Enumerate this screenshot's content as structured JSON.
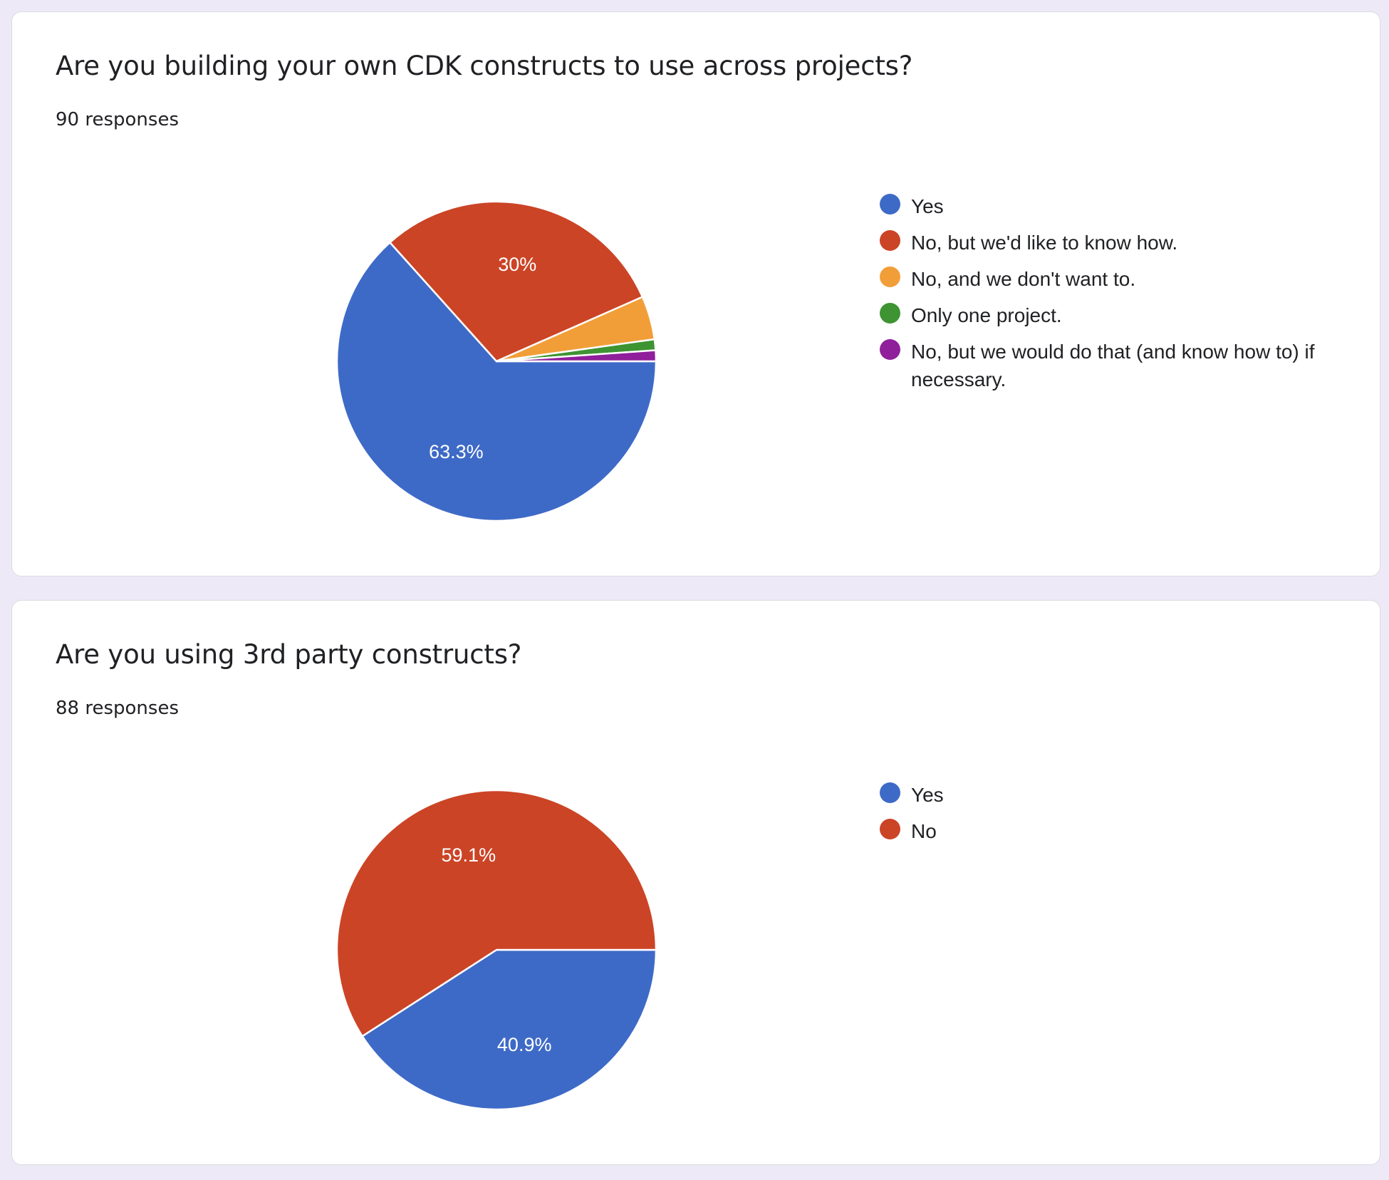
{
  "page_background": "#ede9f7",
  "questions": [
    {
      "title": "Are you building your own CDK constructs to use across projects?",
      "responses": "90 responses"
    },
    {
      "title": "Are you using 3rd party constructs?",
      "responses": "88 responses"
    }
  ],
  "chart_data": [
    {
      "type": "pie",
      "categories": [
        "Yes",
        "No, but we'd like to know how.",
        "No, and we don't want to.",
        "Only one project.",
        "No, but we would do that (and know how to) if necessary."
      ],
      "values": [
        63.3,
        30,
        4.4,
        1.1,
        1.1
      ],
      "value_labels": [
        "63.3%",
        "30%",
        "",
        "",
        ""
      ],
      "colors": [
        "#3e6ac7",
        "#cb4426",
        "#f29e38",
        "#3e9432",
        "#8f1f9b"
      ],
      "start_angle_deg": 0,
      "direction": "clockwise",
      "legend": "right"
    },
    {
      "type": "pie",
      "categories": [
        "Yes",
        "No"
      ],
      "values": [
        40.9,
        59.1
      ],
      "value_labels": [
        "40.9%",
        "59.1%"
      ],
      "colors": [
        "#3e6ac7",
        "#cb4426"
      ],
      "start_angle_deg": 0,
      "direction": "clockwise",
      "legend": "right"
    }
  ]
}
